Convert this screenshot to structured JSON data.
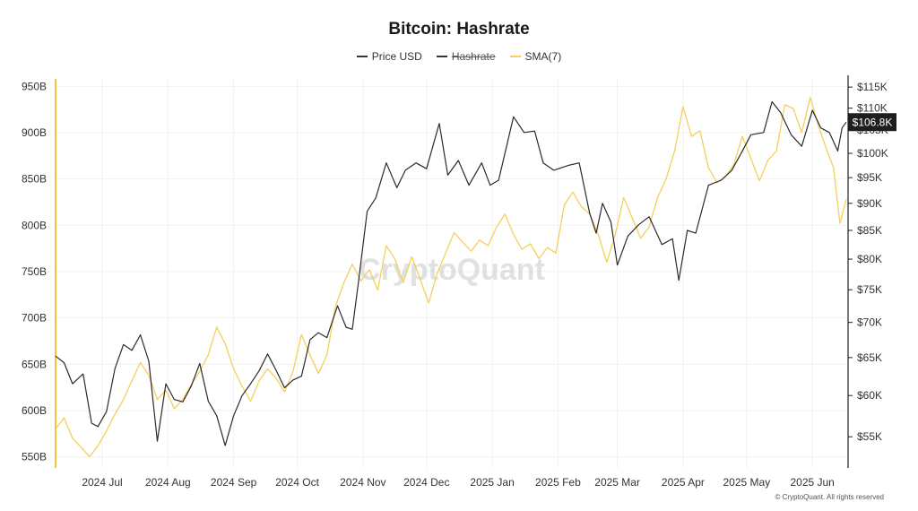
{
  "header": {
    "title": "Bitcoin: Hashrate"
  },
  "legend": [
    {
      "label": "Price USD",
      "color": "#333333",
      "active": true
    },
    {
      "label": "Hashrate",
      "color": "#333333",
      "active": false
    },
    {
      "label": "SMA(7)",
      "color": "#f5cf5e",
      "active": true
    }
  ],
  "watermark": "CryptoQuant",
  "footer": "© CryptoQuant. All rights reserved",
  "price_badge": "$106.8K",
  "colors": {
    "price": "#2b2b2b",
    "sma": "#f5cf5e",
    "left_axis": "#f3c33f",
    "right_axis": "#222222",
    "grid": "#f1f1f1",
    "badge_bg": "#1e1e1e",
    "badge_text": "#ffffff"
  },
  "chart_data": {
    "type": "line",
    "title": "Bitcoin: Hashrate",
    "x_tick_labels": [
      "2024 Jul",
      "2024 Aug",
      "2024 Sep",
      "2024 Oct",
      "2024 Nov",
      "2024 Dec",
      "2025 Jan",
      "2025 Feb",
      "2025 Mar",
      "2025 Apr",
      "2025 May",
      "2025 Jun"
    ],
    "x_range": [
      "2024-06-18",
      "2025-06-26"
    ],
    "y_left": {
      "label": "",
      "ticks": [
        "550B",
        "600B",
        "650B",
        "700B",
        "750B",
        "800B",
        "850B",
        "900B",
        "950B"
      ],
      "tick_values": [
        550,
        600,
        650,
        700,
        750,
        800,
        850,
        900,
        950
      ],
      "range": [
        538,
        958
      ],
      "unit": "B"
    },
    "y_right": {
      "label": "",
      "ticks": [
        "$55K",
        "$60K",
        "$65K",
        "$70K",
        "$75K",
        "$80K",
        "$85K",
        "$90K",
        "$95K",
        "$100K",
        "$105K",
        "$110K",
        "$115K"
      ],
      "tick_values": [
        55,
        60,
        65,
        70,
        75,
        80,
        85,
        90,
        95,
        100,
        105,
        110,
        115
      ],
      "range": [
        51.5,
        117
      ],
      "scale": "log",
      "unit": "$K"
    },
    "grid": true,
    "legend_position": "top-center",
    "series": [
      {
        "name": "Price USD",
        "axis": "right",
        "points": [
          [
            "2024-06-18",
            65.2
          ],
          [
            "2024-06-22",
            64.3
          ],
          [
            "2024-06-26",
            61.5
          ],
          [
            "2024-07-01",
            62.8
          ],
          [
            "2024-07-05",
            56.6
          ],
          [
            "2024-07-08",
            56.2
          ],
          [
            "2024-07-12",
            58.0
          ],
          [
            "2024-07-16",
            63.5
          ],
          [
            "2024-07-20",
            66.8
          ],
          [
            "2024-07-24",
            66.0
          ],
          [
            "2024-07-28",
            68.2
          ],
          [
            "2024-08-01",
            64.5
          ],
          [
            "2024-08-05",
            54.5
          ],
          [
            "2024-08-09",
            61.5
          ],
          [
            "2024-08-13",
            59.5
          ],
          [
            "2024-08-17",
            59.2
          ],
          [
            "2024-08-21",
            61.2
          ],
          [
            "2024-08-25",
            64.2
          ],
          [
            "2024-08-29",
            59.3
          ],
          [
            "2024-09-02",
            57.5
          ],
          [
            "2024-09-06",
            54.0
          ],
          [
            "2024-09-10",
            57.5
          ],
          [
            "2024-09-14",
            60.0
          ],
          [
            "2024-09-18",
            61.5
          ],
          [
            "2024-09-22",
            63.2
          ],
          [
            "2024-09-26",
            65.5
          ],
          [
            "2024-09-30",
            63.3
          ],
          [
            "2024-10-04",
            61.0
          ],
          [
            "2024-10-08",
            62.0
          ],
          [
            "2024-10-12",
            62.5
          ],
          [
            "2024-10-16",
            67.5
          ],
          [
            "2024-10-20",
            68.5
          ],
          [
            "2024-10-24",
            67.8
          ],
          [
            "2024-10-29",
            72.5
          ],
          [
            "2024-11-02",
            69.3
          ],
          [
            "2024-11-05",
            69.0
          ],
          [
            "2024-11-08",
            76.5
          ],
          [
            "2024-11-12",
            88.5
          ],
          [
            "2024-11-16",
            91.0
          ],
          [
            "2024-11-21",
            98.0
          ],
          [
            "2024-11-26",
            93.0
          ],
          [
            "2024-11-30",
            96.5
          ],
          [
            "2024-12-05",
            98.0
          ],
          [
            "2024-12-10",
            96.8
          ],
          [
            "2024-12-16",
            106.5
          ],
          [
            "2024-12-20",
            95.5
          ],
          [
            "2024-12-25",
            98.5
          ],
          [
            "2024-12-30",
            93.5
          ],
          [
            "2025-01-05",
            98.0
          ],
          [
            "2025-01-09",
            93.5
          ],
          [
            "2025-01-13",
            94.5
          ],
          [
            "2025-01-20",
            108.0
          ],
          [
            "2025-01-25",
            104.5
          ],
          [
            "2025-01-30",
            104.8
          ],
          [
            "2025-02-03",
            98.0
          ],
          [
            "2025-02-08",
            96.5
          ],
          [
            "2025-02-15",
            97.5
          ],
          [
            "2025-02-20",
            98.0
          ],
          [
            "2025-02-25",
            88.0
          ],
          [
            "2025-02-28",
            84.5
          ],
          [
            "2025-03-03",
            90.0
          ],
          [
            "2025-03-07",
            86.5
          ],
          [
            "2025-03-10",
            79.0
          ],
          [
            "2025-03-15",
            84.0
          ],
          [
            "2025-03-20",
            86.0
          ],
          [
            "2025-03-25",
            87.5
          ],
          [
            "2025-03-31",
            82.5
          ],
          [
            "2025-04-05",
            83.5
          ],
          [
            "2025-04-08",
            76.5
          ],
          [
            "2025-04-12",
            85.0
          ],
          [
            "2025-04-16",
            84.5
          ],
          [
            "2025-04-22",
            93.5
          ],
          [
            "2025-04-28",
            94.5
          ],
          [
            "2025-05-03",
            96.5
          ],
          [
            "2025-05-08",
            100.5
          ],
          [
            "2025-05-12",
            104.0
          ],
          [
            "2025-05-18",
            104.5
          ],
          [
            "2025-05-22",
            111.5
          ],
          [
            "2025-05-26",
            109.0
          ],
          [
            "2025-05-31",
            104.0
          ],
          [
            "2025-06-05",
            101.5
          ],
          [
            "2025-06-10",
            109.5
          ],
          [
            "2025-06-14",
            105.5
          ],
          [
            "2025-06-18",
            104.5
          ],
          [
            "2025-06-22",
            100.5
          ],
          [
            "2025-06-24",
            105.5
          ],
          [
            "2025-06-26",
            106.8
          ]
        ]
      },
      {
        "name": "SMA(7)",
        "axis": "left",
        "points": [
          [
            "2024-06-18",
            580
          ],
          [
            "2024-06-22",
            592
          ],
          [
            "2024-06-26",
            570
          ],
          [
            "2024-07-01",
            558
          ],
          [
            "2024-07-04",
            550
          ],
          [
            "2024-07-08",
            562
          ],
          [
            "2024-07-12",
            578
          ],
          [
            "2024-07-16",
            596
          ],
          [
            "2024-07-20",
            612
          ],
          [
            "2024-07-24",
            632
          ],
          [
            "2024-07-28",
            652
          ],
          [
            "2024-08-01",
            638
          ],
          [
            "2024-08-05",
            612
          ],
          [
            "2024-08-09",
            622
          ],
          [
            "2024-08-13",
            602
          ],
          [
            "2024-08-17",
            612
          ],
          [
            "2024-08-21",
            628
          ],
          [
            "2024-08-25",
            642
          ],
          [
            "2024-08-29",
            660
          ],
          [
            "2024-09-02",
            690
          ],
          [
            "2024-09-06",
            672
          ],
          [
            "2024-09-10",
            645
          ],
          [
            "2024-09-14",
            626
          ],
          [
            "2024-09-18",
            610
          ],
          [
            "2024-09-22",
            632
          ],
          [
            "2024-09-26",
            645
          ],
          [
            "2024-09-30",
            635
          ],
          [
            "2024-10-04",
            620
          ],
          [
            "2024-10-08",
            642
          ],
          [
            "2024-10-12",
            682
          ],
          [
            "2024-10-16",
            660
          ],
          [
            "2024-10-20",
            640
          ],
          [
            "2024-10-24",
            660
          ],
          [
            "2024-10-28",
            712
          ],
          [
            "2024-11-01",
            738
          ],
          [
            "2024-11-05",
            758
          ],
          [
            "2024-11-09",
            740
          ],
          [
            "2024-11-13",
            752
          ],
          [
            "2024-11-17",
            730
          ],
          [
            "2024-11-21",
            778
          ],
          [
            "2024-11-25",
            764
          ],
          [
            "2024-11-29",
            738
          ],
          [
            "2024-12-03",
            766
          ],
          [
            "2024-12-07",
            742
          ],
          [
            "2024-12-11",
            716
          ],
          [
            "2024-12-15",
            748
          ],
          [
            "2024-12-19",
            770
          ],
          [
            "2024-12-23",
            792
          ],
          [
            "2024-12-27",
            782
          ],
          [
            "2024-12-31",
            772
          ],
          [
            "2025-01-04",
            784
          ],
          [
            "2025-01-08",
            778
          ],
          [
            "2025-01-12",
            798
          ],
          [
            "2025-01-16",
            812
          ],
          [
            "2025-01-20",
            790
          ],
          [
            "2025-01-24",
            774
          ],
          [
            "2025-01-28",
            780
          ],
          [
            "2025-02-01",
            764
          ],
          [
            "2025-02-05",
            776
          ],
          [
            "2025-02-09",
            770
          ],
          [
            "2025-02-13",
            822
          ],
          [
            "2025-02-17",
            836
          ],
          [
            "2025-02-21",
            820
          ],
          [
            "2025-02-25",
            812
          ],
          [
            "2025-03-01",
            790
          ],
          [
            "2025-03-05",
            760
          ],
          [
            "2025-03-09",
            790
          ],
          [
            "2025-03-13",
            830
          ],
          [
            "2025-03-17",
            808
          ],
          [
            "2025-03-21",
            786
          ],
          [
            "2025-03-25",
            798
          ],
          [
            "2025-03-29",
            830
          ],
          [
            "2025-04-02",
            850
          ],
          [
            "2025-04-06",
            880
          ],
          [
            "2025-04-10",
            928
          ],
          [
            "2025-04-14",
            896
          ],
          [
            "2025-04-18",
            902
          ],
          [
            "2025-04-22",
            862
          ],
          [
            "2025-04-26",
            846
          ],
          [
            "2025-04-30",
            852
          ],
          [
            "2025-05-04",
            866
          ],
          [
            "2025-05-08",
            896
          ],
          [
            "2025-05-12",
            872
          ],
          [
            "2025-05-16",
            848
          ],
          [
            "2025-05-20",
            870
          ],
          [
            "2025-05-24",
            880
          ],
          [
            "2025-05-28",
            930
          ],
          [
            "2025-06-01",
            926
          ],
          [
            "2025-06-05",
            900
          ],
          [
            "2025-06-09",
            938
          ],
          [
            "2025-06-13",
            906
          ],
          [
            "2025-06-17",
            880
          ],
          [
            "2025-06-20",
            862
          ],
          [
            "2025-06-23",
            802
          ],
          [
            "2025-06-26",
            828
          ]
        ]
      }
    ]
  }
}
